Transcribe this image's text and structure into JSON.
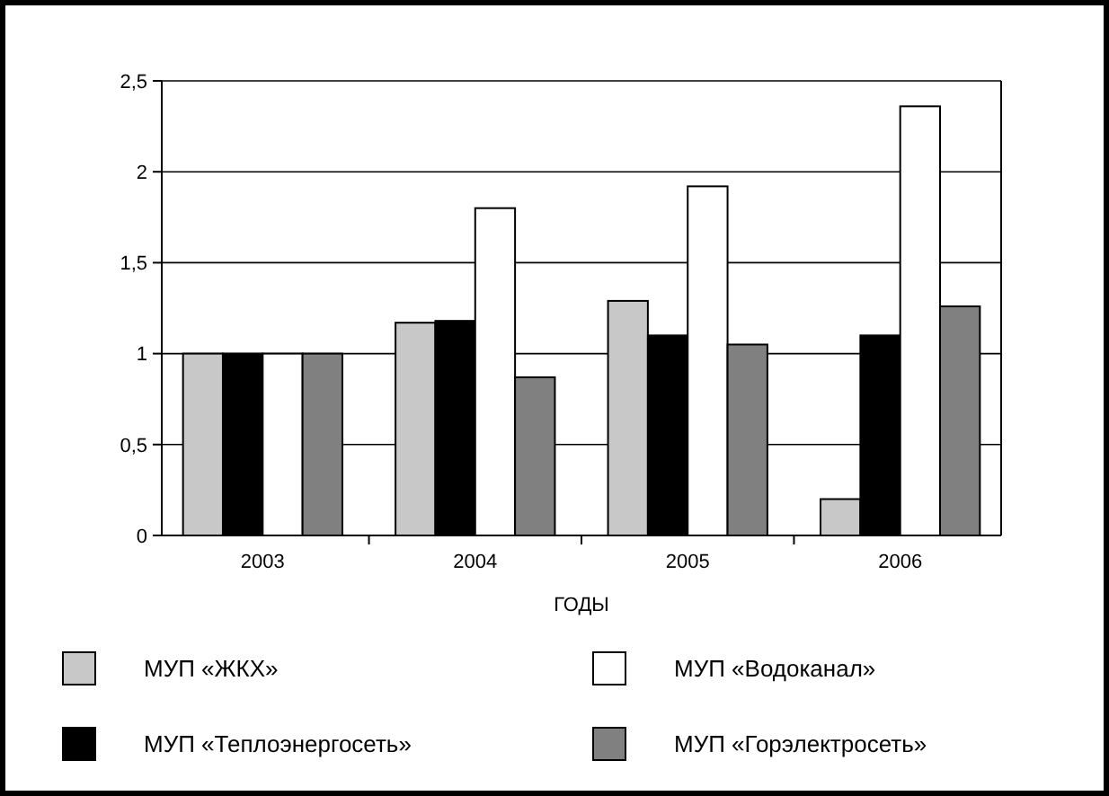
{
  "chart_data": {
    "type": "bar",
    "xlabel": "ГОДЫ",
    "categories": [
      "2003",
      "2004",
      "2005",
      "2006"
    ],
    "series": [
      {
        "name": "МУП «ЖКХ»",
        "color": "#c8c8c8",
        "values": [
          1,
          1.17,
          1.29,
          0.2
        ]
      },
      {
        "name": "МУП «Теплоэнергосеть»",
        "color": "#000000",
        "values": [
          1,
          1.18,
          1.1,
          1.1
        ]
      },
      {
        "name": "МУП «Водоканал»",
        "color": "#ffffff",
        "values": [
          1,
          1.8,
          1.92,
          2.36
        ]
      },
      {
        "name": "МУП «Горэлектросеть»",
        "color": "#808080",
        "values": [
          1,
          0.87,
          1.05,
          1.26
        ]
      }
    ],
    "ylim": [
      0,
      2.5
    ],
    "yticks": [
      0,
      {
        "value": 0.5,
        "label": "0,5"
      },
      1,
      {
        "value": 1.5,
        "label": "1,5"
      },
      2,
      {
        "value": 2.5,
        "label": "2,5"
      }
    ],
    "grid": "y",
    "legend": "bottom"
  }
}
